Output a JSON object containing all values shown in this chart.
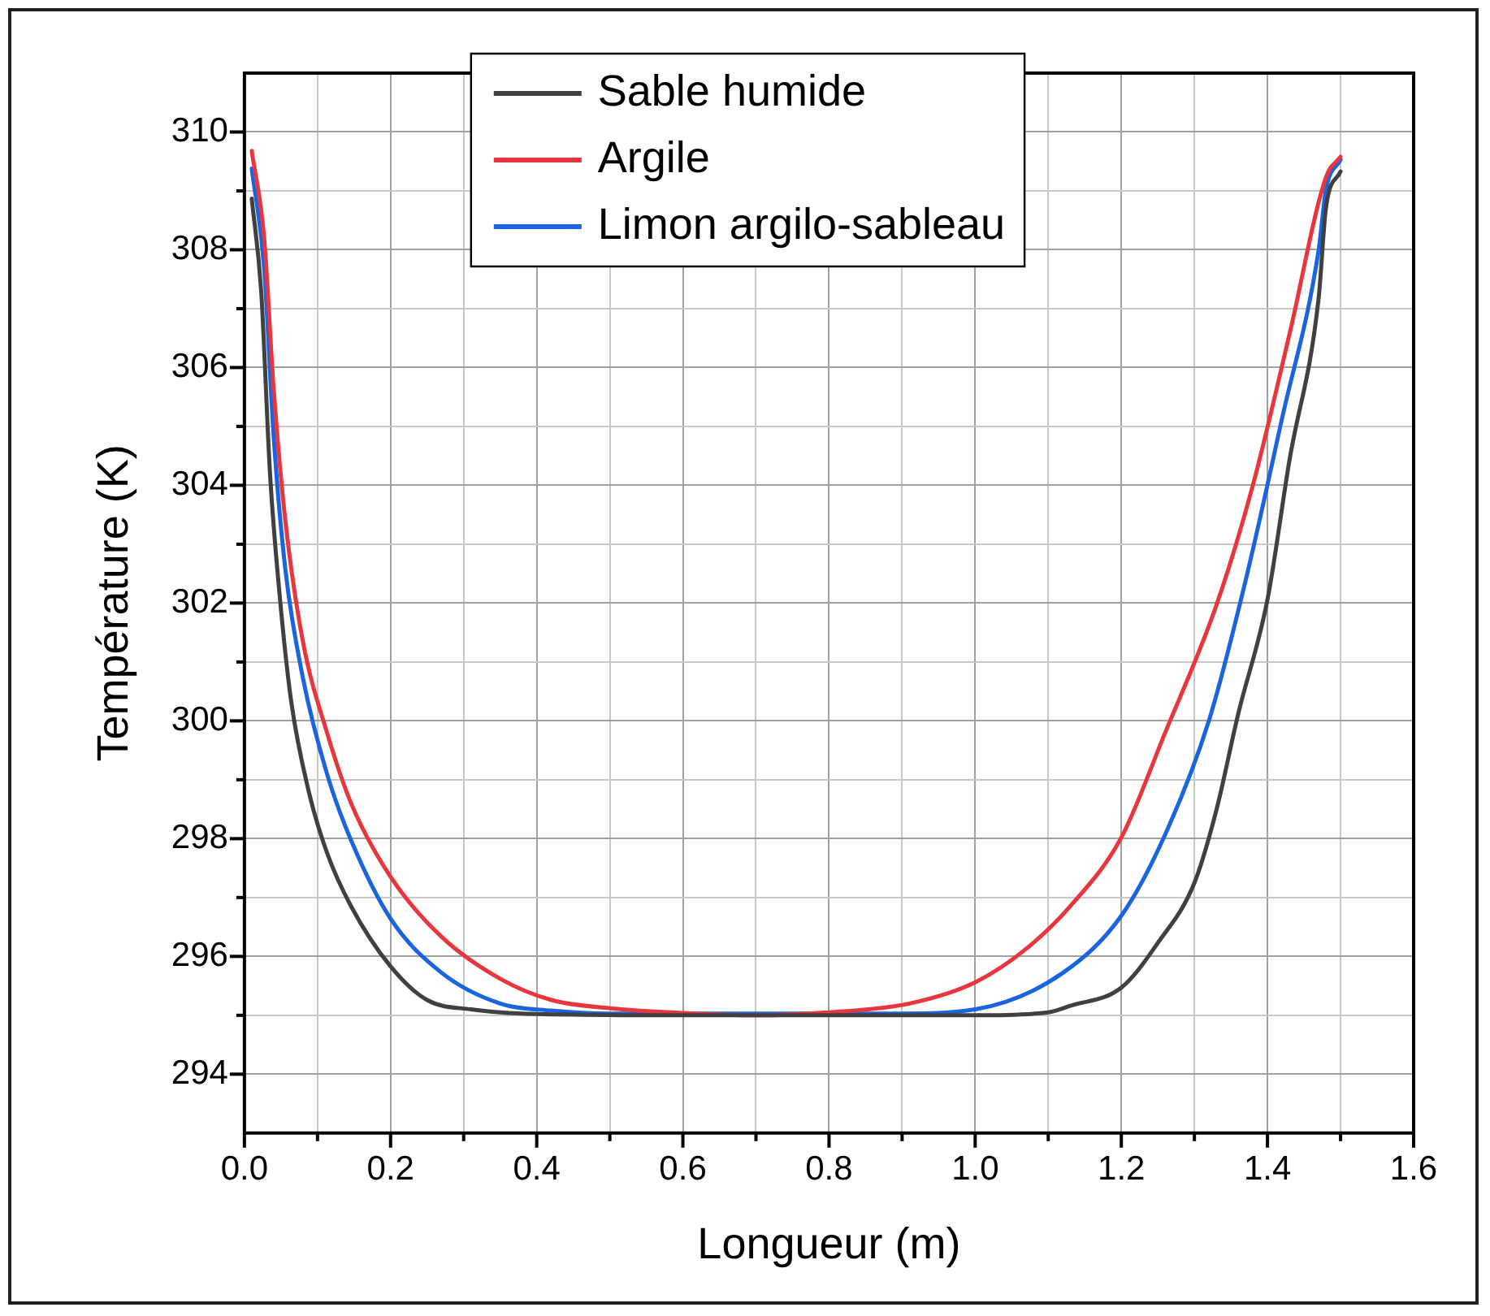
{
  "chart_data": {
    "type": "line",
    "xlabel": "Longueur (m)",
    "ylabel": "Température (K)",
    "xlim": [
      0,
      1.6
    ],
    "ylim": [
      293,
      311
    ],
    "xticks": [
      {
        "value": 0,
        "label": "0.0"
      },
      {
        "value": 0.1,
        "label": null
      },
      {
        "value": 0.2,
        "label": "0.2"
      },
      {
        "value": 0.3,
        "label": null
      },
      {
        "value": 0.4,
        "label": "0.4"
      },
      {
        "value": 0.5,
        "label": null
      },
      {
        "value": 0.6,
        "label": "0.6"
      },
      {
        "value": 0.7,
        "label": null
      },
      {
        "value": 0.8,
        "label": "0.8"
      },
      {
        "value": 0.9,
        "label": null
      },
      {
        "value": 1,
        "label": "1.0"
      },
      {
        "value": 1.1,
        "label": null
      },
      {
        "value": 1.2,
        "label": "1.2"
      },
      {
        "value": 1.3,
        "label": null
      },
      {
        "value": 1.4,
        "label": "1.4"
      },
      {
        "value": 1.5,
        "label": null
      },
      {
        "value": 1.6,
        "label": "1.6"
      }
    ],
    "yticks": [
      294,
      {
        "value": 295,
        "label": null
      },
      296,
      {
        "value": 297,
        "label": null
      },
      298,
      {
        "value": 299,
        "label": null
      },
      300,
      {
        "value": 301,
        "label": null
      },
      302,
      {
        "value": 303,
        "label": null
      },
      304,
      {
        "value": 305,
        "label": null
      },
      306,
      {
        "value": 307,
        "label": null
      },
      308,
      {
        "value": 309,
        "label": null
      },
      310
    ],
    "grid": true,
    "legend": "top",
    "marker": "none",
    "line_style": "solid",
    "series": [
      {
        "name": "Sable humide",
        "color": "#404040",
        "x": [
          0.01,
          0.023,
          0.035,
          0.048,
          0.064,
          0.088,
          0.113,
          0.146,
          0.2,
          0.25,
          0.31,
          0.4,
          0.6,
          0.8,
          1.0,
          1.1,
          1.13,
          1.2,
          1.25,
          1.3,
          1.33,
          1.36,
          1.4,
          1.43,
          1.47,
          1.48,
          1.5
        ],
        "values": [
          308.87,
          307.28,
          304.2,
          302.16,
          300.33,
          298.8,
          297.76,
          296.85,
          295.83,
          295.26,
          295.1,
          295.02,
          295.0,
          295.0,
          295.0,
          295.05,
          295.16,
          295.47,
          296.23,
          297.25,
          298.48,
          300.12,
          302.06,
          304.42,
          307.18,
          308.71,
          309.33
        ]
      },
      {
        "name": "Argile",
        "color": "#e8363e",
        "x": [
          0.01,
          0.027,
          0.04,
          0.056,
          0.08,
          0.113,
          0.146,
          0.2,
          0.27,
          0.35,
          0.42,
          0.5,
          0.6,
          0.7,
          0.8,
          0.91,
          1.0,
          1.07,
          1.13,
          1.2,
          1.26,
          1.33,
          1.38,
          1.43,
          1.48,
          1.5
        ],
        "values": [
          309.68,
          308.2,
          305.64,
          303.4,
          301.35,
          299.8,
          298.6,
          297.35,
          296.33,
          295.62,
          295.26,
          295.12,
          295.04,
          295.0,
          295.05,
          295.2,
          295.56,
          296.13,
          296.85,
          298.02,
          299.8,
          301.96,
          304.0,
          306.56,
          309.23,
          309.58
        ]
      },
      {
        "name": "Limon argilo-sableau",
        "color": "#1a64e0",
        "x": [
          0.01,
          0.027,
          0.04,
          0.056,
          0.08,
          0.113,
          0.146,
          0.2,
          0.27,
          0.35,
          0.42,
          0.5,
          0.9,
          1.0,
          1.12,
          1.2,
          1.26,
          1.32,
          1.37,
          1.42,
          1.47,
          1.48,
          1.5
        ],
        "values": [
          309.38,
          307.69,
          304.83,
          302.57,
          300.73,
          299.1,
          297.97,
          296.64,
          295.72,
          295.2,
          295.08,
          295.03,
          295.03,
          295.1,
          295.72,
          296.69,
          298.07,
          300.01,
          302.38,
          305.14,
          307.99,
          309.02,
          309.53
        ]
      }
    ]
  }
}
